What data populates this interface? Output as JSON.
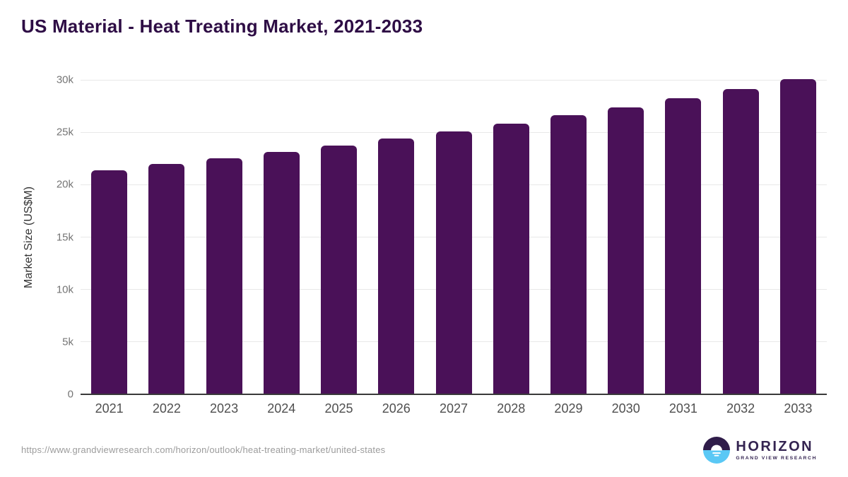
{
  "header": {
    "title": "US Material - Heat Treating Market, 2021-2033"
  },
  "chart_data": {
    "type": "bar",
    "title": "US Material - Heat Treating Market, 2021-2033",
    "categories": [
      "2021",
      "2022",
      "2023",
      "2024",
      "2025",
      "2026",
      "2027",
      "2028",
      "2029",
      "2030",
      "2031",
      "2032",
      "2033"
    ],
    "values": [
      21400,
      21950,
      22550,
      23150,
      23700,
      24400,
      25050,
      25800,
      26600,
      27400,
      28250,
      29150,
      30100
    ],
    "xlabel": "",
    "ylabel": "Market Size (US$M)",
    "ylim": [
      0,
      30000
    ],
    "yticks": [
      0,
      5000,
      10000,
      15000,
      20000,
      25000,
      30000
    ],
    "ytick_labels": [
      "0",
      "5k",
      "10k",
      "15k",
      "20k",
      "25k",
      "30k"
    ],
    "grid": true,
    "legend": "none",
    "bar_color": "#4A1158"
  },
  "footer": {
    "source_url": "https://www.grandviewresearch.com/horizon/outlook/heat-treating-market/united-states",
    "logo": {
      "name": "HORIZON",
      "subtitle": "GRAND VIEW RESEARCH"
    }
  },
  "colors": {
    "title_text": "#2E0D45",
    "bar": "#4A1158",
    "gridline": "#E8E8E8",
    "axis_line": "#3A3A3A",
    "ytick_text": "#757575",
    "xtick_text": "#4F4F4F",
    "ylabel_text": "#333333",
    "url_text": "#9C9C9C",
    "logo_purple": "#2F1C49",
    "logo_blue": "#5AC8F5",
    "logo_text": "#342451"
  }
}
